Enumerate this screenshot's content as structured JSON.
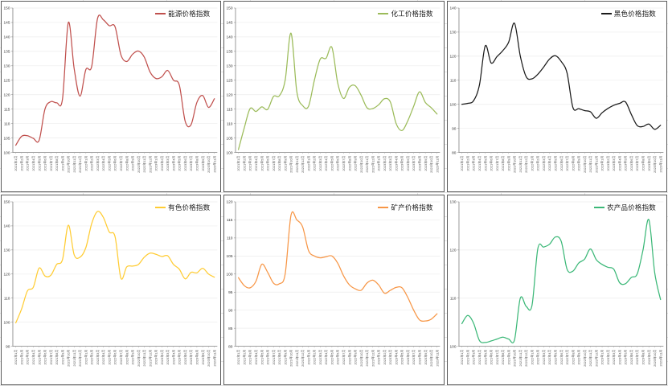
{
  "chart_data": [
    {
      "type": "line",
      "title": "能源价格指数",
      "color": "#C0504D",
      "ylim": [
        100,
        150
      ],
      "y_step": 5,
      "categories": [
        "2021年1月",
        "2021年2月",
        "2021年3月",
        "2021年4月",
        "2021年5月",
        "2021年6月",
        "2021年7月",
        "2021年8月",
        "2021年9月",
        "2021年10月",
        "2021年11月",
        "2021年12月",
        "2022年1月",
        "2022年2月",
        "2022年3月",
        "2022年4月",
        "2022年5月",
        "2022年6月",
        "2022年7月",
        "2022年8月",
        "2022年9月",
        "2022年10月",
        "2022年11月",
        "2022年12月",
        "2023年1月",
        "2023年2月",
        "2023年3月",
        "2023年4月",
        "2023年5月",
        "2023年6月",
        "2023年7月",
        "2023年8月",
        "2023年9月",
        "2023年10月",
        "2023年11月"
      ],
      "values": [
        102.5,
        105.6,
        105.8,
        104.9,
        104.2,
        115.0,
        117.6,
        117.2,
        118.5,
        145.0,
        129.0,
        119.5,
        128.7,
        129.8,
        146.4,
        145.9,
        143.9,
        143.5,
        133.8,
        131.5,
        134.0,
        135.1,
        133.0,
        127.8,
        125.6,
        126.2,
        128.4,
        125.0,
        123.3,
        110.8,
        109.6,
        117.3,
        119.7,
        115.6,
        118.6
      ]
    },
    {
      "type": "line",
      "title": "化工价格指数",
      "color": "#9BBB59",
      "ylim": [
        100,
        150
      ],
      "y_step": 5,
      "categories": [
        "2021年1月",
        "2021年2月",
        "2021年3月",
        "2021年4月",
        "2021年5月",
        "2021年6月",
        "2021年7月",
        "2021年8月",
        "2021年9月",
        "2021年10月",
        "2021年11月",
        "2021年12月",
        "2022年1月",
        "2022年2月",
        "2022年3月",
        "2022年4月",
        "2022年5月",
        "2022年6月",
        "2022年7月",
        "2022年8月",
        "2022年9月",
        "2022年10月",
        "2022年11月",
        "2022年12月",
        "2023年1月",
        "2023年2月",
        "2023年3月",
        "2023年4月",
        "2023年5月",
        "2023年6月",
        "2023年7月",
        "2023年8月",
        "2023年9月",
        "2023年10月",
        "2023年11月"
      ],
      "values": [
        101.0,
        108.5,
        115.2,
        114.2,
        115.8,
        114.9,
        119.4,
        119.6,
        125.0,
        141.3,
        121.0,
        116.2,
        116.0,
        125.0,
        132.3,
        132.6,
        136.4,
        124.0,
        118.7,
        122.6,
        123.1,
        119.8,
        115.5,
        115.2,
        116.5,
        118.6,
        117.5,
        110.0,
        107.6,
        111.0,
        116.0,
        121.0,
        117.3,
        115.5,
        113.3
      ]
    },
    {
      "type": "line",
      "title": "黑色价格指数",
      "color": "#1a1a1a",
      "ylim": [
        80,
        140
      ],
      "y_step": 10,
      "categories": [
        "2021年1月",
        "2021年2月",
        "2021年3月",
        "2021年4月",
        "2021年5月",
        "2021年6月",
        "2021年7月",
        "2021年8月",
        "2021年9月",
        "2021年10月",
        "2021年11月",
        "2021年12月",
        "2022年1月",
        "2022年2月",
        "2022年3月",
        "2022年4月",
        "2022年5月",
        "2022年6月",
        "2022年7月",
        "2022年8月",
        "2022年9月",
        "2022年10月",
        "2022年11月",
        "2022年12月",
        "2023年1月",
        "2023年2月",
        "2023年3月",
        "2023年4月",
        "2023年5月",
        "2023年6月",
        "2023年7月",
        "2023年8月",
        "2023年9月",
        "2023年10月",
        "2023年11月"
      ],
      "values": [
        100.0,
        100.4,
        101.5,
        108.0,
        124.3,
        117.2,
        119.8,
        122.3,
        125.8,
        133.7,
        120.0,
        111.5,
        110.6,
        112.5,
        115.5,
        118.8,
        120.2,
        117.8,
        113.0,
        98.7,
        98.2,
        97.4,
        96.9,
        94.2,
        96.5,
        98.3,
        99.6,
        100.4,
        101.0,
        95.8,
        91.2,
        90.8,
        91.8,
        89.6,
        91.3
      ]
    },
    {
      "type": "line",
      "title": "有色价格指数",
      "color": "#FFCC33",
      "ylim": [
        90,
        150
      ],
      "y_step": 10,
      "categories": [
        "2021年1月",
        "2021年2月",
        "2021年3月",
        "2021年4月",
        "2021年5月",
        "2021年6月",
        "2021年7月",
        "2021年8月",
        "2021年9月",
        "2021年10月",
        "2021年11月",
        "2021年12月",
        "2022年1月",
        "2022年2月",
        "2022年3月",
        "2022年4月",
        "2022年5月",
        "2022年6月",
        "2022年7月",
        "2022年8月",
        "2022年9月",
        "2022年10月",
        "2022年11月",
        "2022年12月",
        "2023年1月",
        "2023年2月",
        "2023年3月",
        "2023年4月",
        "2023年5月",
        "2023年6月",
        "2023年7月",
        "2023年8月",
        "2023年9月",
        "2023年10月",
        "2023年11月"
      ],
      "values": [
        99.7,
        105.5,
        113.0,
        114.5,
        122.5,
        119.2,
        119.5,
        124.0,
        126.0,
        140.3,
        128.0,
        127.0,
        131.0,
        141.0,
        146.0,
        143.5,
        137.5,
        135.5,
        118.3,
        123.0,
        123.3,
        124.0,
        127.0,
        128.7,
        128.2,
        127.3,
        127.6,
        124.0,
        122.0,
        118.0,
        120.7,
        120.5,
        122.4,
        120.0,
        118.7
      ]
    },
    {
      "type": "line",
      "title": "矿产价格指数",
      "color": "#F79646",
      "ylim": [
        80,
        120
      ],
      "y_step": 5,
      "categories": [
        "2021年1月",
        "2021年2月",
        "2021年3月",
        "2021年4月",
        "2021年5月",
        "2021年6月",
        "2021年7月",
        "2021年8月",
        "2021年9月",
        "2021年10月",
        "2021年11月",
        "2021年12月",
        "2022年1月",
        "2022年2月",
        "2022年3月",
        "2022年4月",
        "2022年5月",
        "2022年6月",
        "2022年7月",
        "2022年8月",
        "2022年9月",
        "2022年10月",
        "2022年11月",
        "2022年12月",
        "2023年1月",
        "2023年2月",
        "2023年3月",
        "2023年4月",
        "2023年5月",
        "2023年6月",
        "2023年7月",
        "2023年8月",
        "2023年9月",
        "2023年10月",
        "2023年11月"
      ],
      "values": [
        99.0,
        96.8,
        96.2,
        98.0,
        102.7,
        100.5,
        97.5,
        97.3,
        100.0,
        116.3,
        115.0,
        113.0,
        106.5,
        105.0,
        104.5,
        104.8,
        105.0,
        103.0,
        99.5,
        97.0,
        95.9,
        95.5,
        97.5,
        98.3,
        97.0,
        94.7,
        95.5,
        96.3,
        96.2,
        93.5,
        90.0,
        87.3,
        87.0,
        87.5,
        89.0
      ]
    },
    {
      "type": "line",
      "title": "农产品价格指数",
      "color": "#3CB878",
      "ylim": [
        100,
        130
      ],
      "y_step": 10,
      "categories": [
        "2021年1月",
        "2021年2月",
        "2021年3月",
        "2021年4月",
        "2021年5月",
        "2021年6月",
        "2021年7月",
        "2021年8月",
        "2021年9月",
        "2021年10月",
        "2021年11月",
        "2021年12月",
        "2022年1月",
        "2022年2月",
        "2022年3月",
        "2022年4月",
        "2022年5月",
        "2022年6月",
        "2022年7月",
        "2022年8月",
        "2022年9月",
        "2022年10月",
        "2022年11月",
        "2022年12月",
        "2023年1月",
        "2023年2月",
        "2023年3月",
        "2023年4月",
        "2023年5月",
        "2023年6月",
        "2023年7月",
        "2023年8月",
        "2023年9月",
        "2023年10月",
        "2023年11月"
      ],
      "values": [
        104.7,
        106.4,
        104.8,
        101.2,
        100.8,
        101.1,
        101.5,
        101.9,
        101.5,
        101.3,
        110.0,
        108.3,
        108.5,
        120.3,
        120.6,
        121.2,
        122.7,
        121.8,
        116.0,
        115.6,
        117.3,
        118.1,
        120.2,
        118.0,
        117.0,
        116.4,
        116.0,
        113.2,
        113.0,
        114.3,
        115.0,
        120.0,
        126.3,
        115.3,
        109.7
      ]
    }
  ],
  "layout": {
    "grid": "2 rows x 3 columns",
    "gridlines": "horizontal only, light gray",
    "legend_position": "top-right inside plot"
  }
}
